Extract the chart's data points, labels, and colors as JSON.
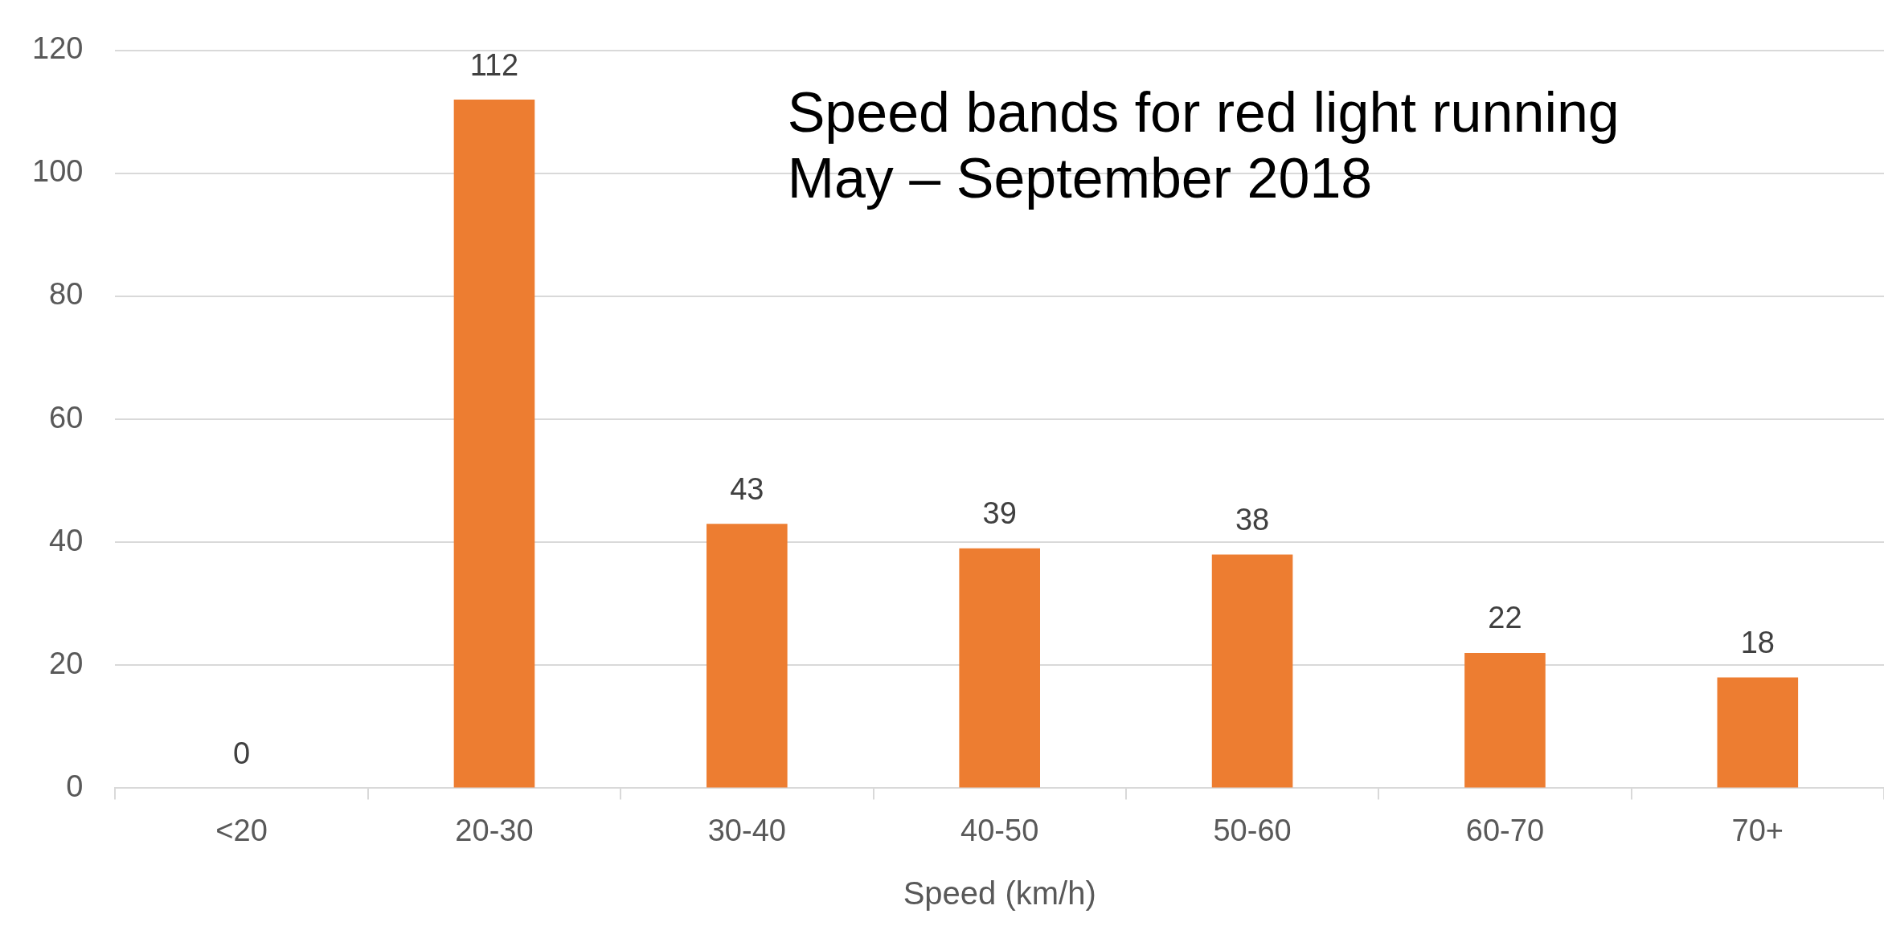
{
  "chart_data": {
    "type": "bar",
    "title": "Speed bands for red light running",
    "subtitle": "May – September 2018",
    "xlabel": "Speed (km/h)",
    "categories": [
      "<20",
      "20-30",
      "30-40",
      "40-50",
      "50-60",
      "60-70",
      "70+"
    ],
    "values": [
      0,
      112,
      43,
      39,
      38,
      22,
      18
    ],
    "color": "#ed7d31",
    "ylim": [
      0,
      120
    ],
    "yticks": [
      0,
      20,
      40,
      60,
      80,
      100,
      120
    ],
    "grid": "y",
    "data_labels": true,
    "legend": false
  }
}
